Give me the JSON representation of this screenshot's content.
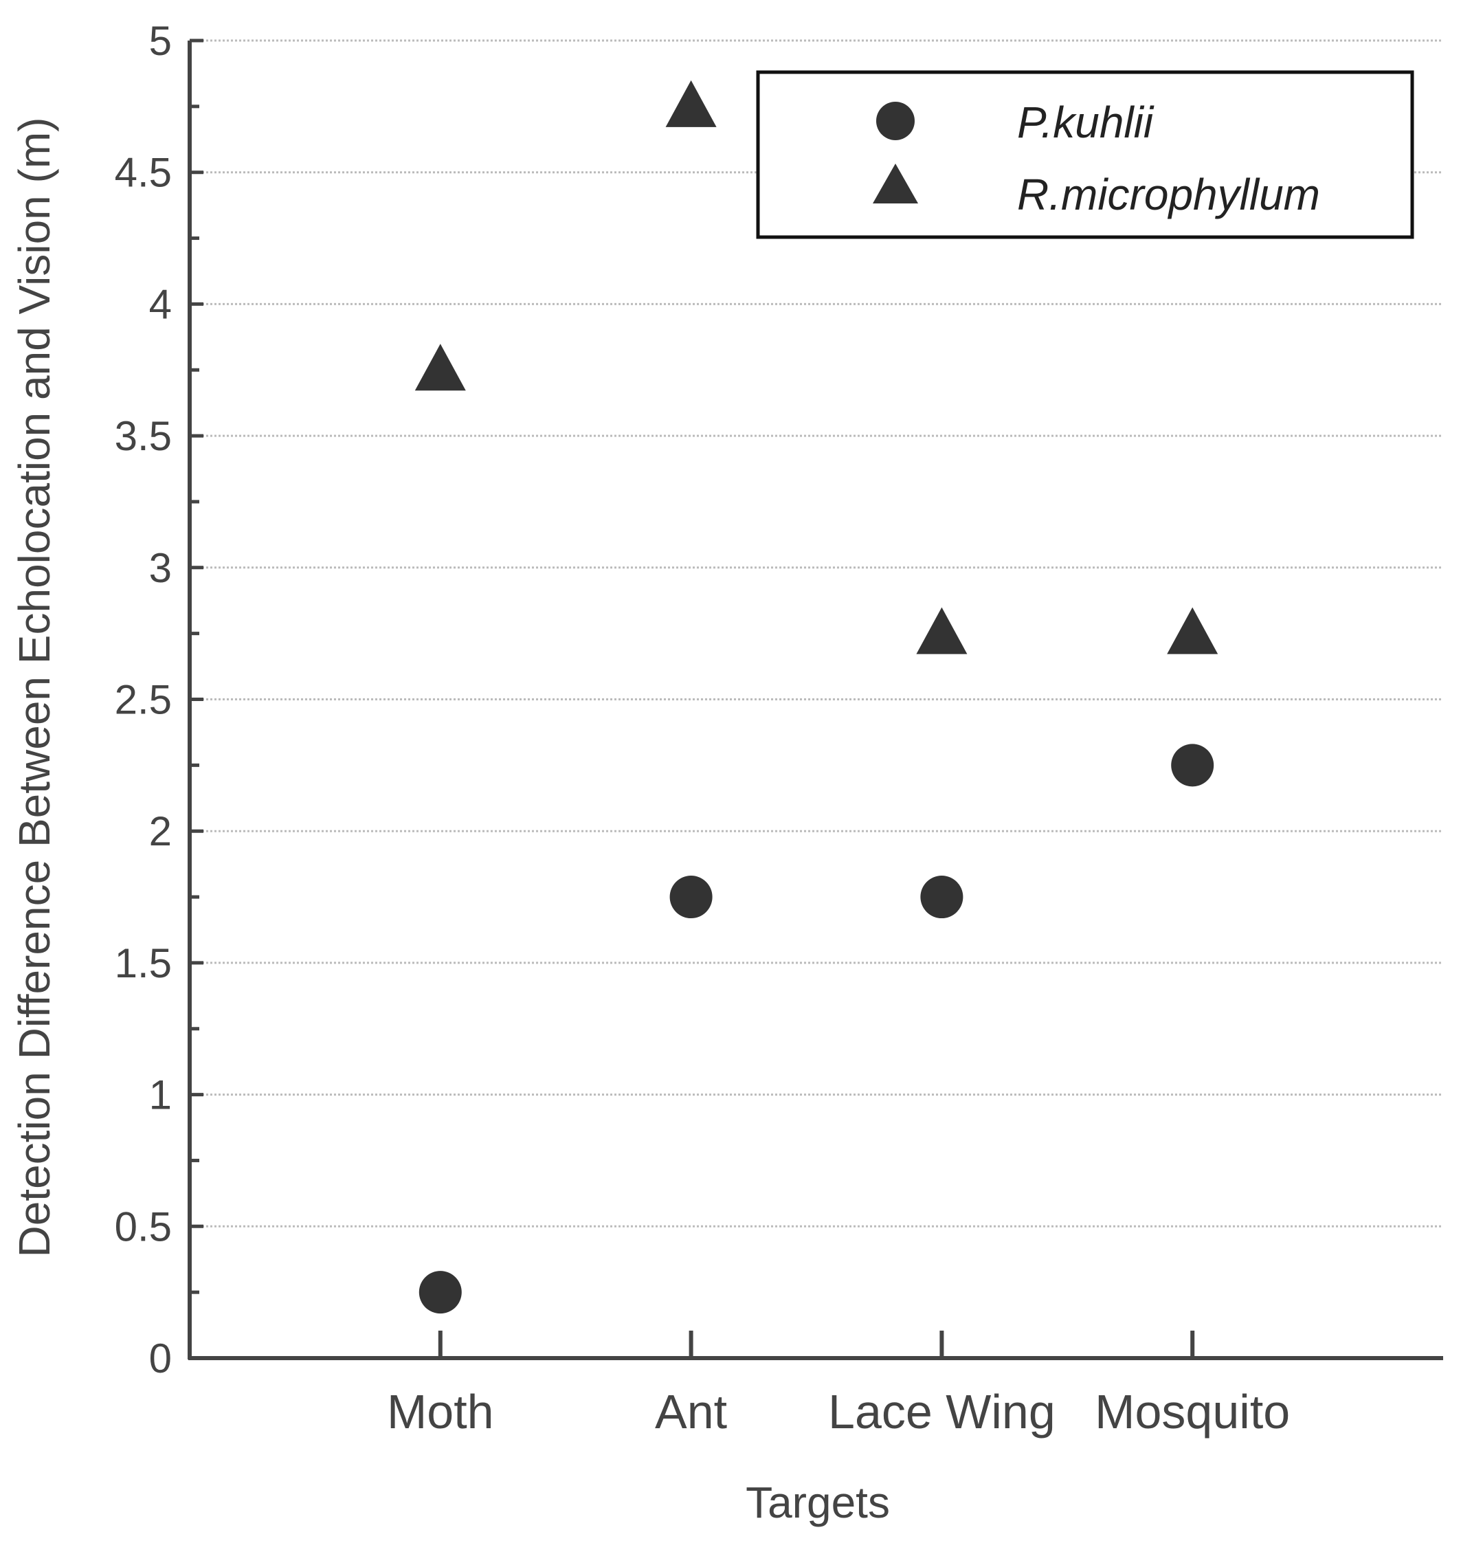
{
  "chart_data": {
    "type": "scatter",
    "title": "",
    "xlabel": "Targets",
    "ylabel": "Detection Difference Between Echolocation and Vision (m)",
    "categories": [
      "Moth",
      "Ant",
      "Lace Wing",
      "Mosquito"
    ],
    "xlim": [
      0,
      5
    ],
    "ylim": [
      0,
      5
    ],
    "yticks": [
      "0",
      "0.5",
      "1",
      "1.5",
      "2",
      "2.5",
      "3",
      "3.5",
      "4",
      "4.5",
      "5"
    ],
    "grid": "horizontal dotted",
    "legend_position": "top-right",
    "series": [
      {
        "name": "P.kuhlii",
        "marker": "circle",
        "values": [
          0.25,
          1.75,
          1.75,
          2.25
        ]
      },
      {
        "name": "R.microphyllum",
        "marker": "triangle",
        "values": [
          3.75,
          4.75,
          2.75,
          2.75
        ]
      }
    ]
  },
  "colors": {
    "axis": "#444444",
    "marker": "#333333",
    "grid": "#bbbbbb"
  }
}
